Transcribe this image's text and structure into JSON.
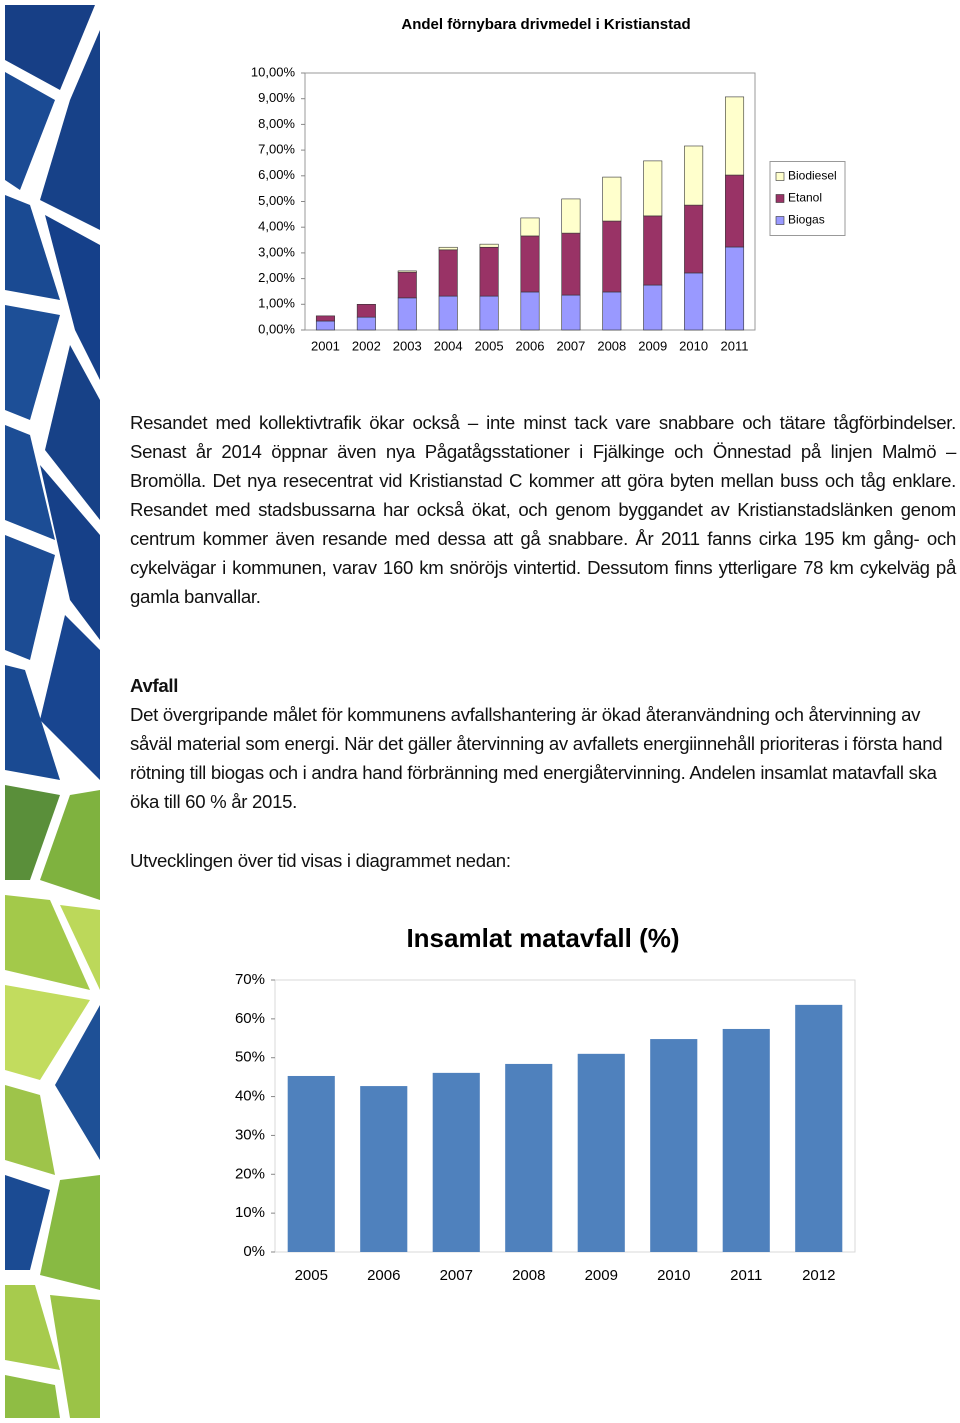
{
  "chart_data": [
    {
      "type": "stacked_bar",
      "title": "Andel förnybara drivmedel i Kristianstad",
      "categories": [
        "2001",
        "2002",
        "2003",
        "2004",
        "2005",
        "2006",
        "2007",
        "2008",
        "2009",
        "2010",
        "2011"
      ],
      "series": [
        {
          "name": "Biogas",
          "color": "#9999ff",
          "values": [
            0.35,
            0.5,
            1.25,
            1.32,
            1.32,
            1.48,
            1.36,
            1.48,
            1.75,
            2.22,
            3.23
          ]
        },
        {
          "name": "Etanol",
          "color": "#993366",
          "values": [
            0.2,
            0.5,
            1.0,
            1.8,
            1.9,
            2.18,
            2.41,
            2.76,
            2.69,
            2.64,
            2.8
          ]
        },
        {
          "name": "Biodiesel",
          "color": "#ffffcc",
          "values": [
            0,
            0,
            0.05,
            0.1,
            0.12,
            0.7,
            1.33,
            1.71,
            2.14,
            2.3,
            3.04
          ]
        }
      ],
      "ylim": [
        0,
        10
      ],
      "yticks": [
        {
          "value": 0,
          "label": "0,00%"
        },
        {
          "value": 1,
          "label": "1,00%"
        },
        {
          "value": 2,
          "label": "2,00%"
        },
        {
          "value": 3,
          "label": "3,00%"
        },
        {
          "value": 4,
          "label": "4,00%"
        },
        {
          "value": 5,
          "label": "5,00%"
        },
        {
          "value": 6,
          "label": "6,00%"
        },
        {
          "value": 7,
          "label": "7,00%"
        },
        {
          "value": 8,
          "label": "8,00%"
        },
        {
          "value": 9,
          "label": "9,00%"
        },
        {
          "value": 10,
          "label": "10,00%"
        }
      ],
      "grid": false,
      "legend": "right"
    },
    {
      "type": "bar",
      "title": "Insamlat matavfall (%)",
      "categories": [
        "2005",
        "2006",
        "2007",
        "2008",
        "2009",
        "2010",
        "2011",
        "2012"
      ],
      "values": [
        45.3,
        42.7,
        46.1,
        48.4,
        51,
        54.8,
        57.4,
        63.6
      ],
      "color": "#4f81bd",
      "ylim": [
        0,
        70
      ],
      "yticks": [
        {
          "value": 0,
          "label": "0%"
        },
        {
          "value": 10,
          "label": "10%"
        },
        {
          "value": 20,
          "label": "20%"
        },
        {
          "value": 30,
          "label": "30%"
        },
        {
          "value": 40,
          "label": "40%"
        },
        {
          "value": 50,
          "label": "50%"
        },
        {
          "value": 60,
          "label": "60%"
        },
        {
          "value": 70,
          "label": "70%"
        }
      ],
      "grid": false
    }
  ],
  "document": {
    "paragraph_1": "Resandet med kollektivtrafik ökar också – inte minst tack vare snabbare och tätare tågförbindelser. Senast år 2014 öppnar även nya Pågatågsstationer i Fjälkinge och Önnestad på linjen Malmö – Bromölla. Det nya resecentrat vid Kristianstad C kommer att göra byten mellan buss och tåg enklare. Resandet med stadsbussarna har också ökat, och genom byggandet av Kristianstadslänken genom centrum kommer även resande med dessa att gå snabbare. År 2011 fanns cirka 195 km gång- och cykelvägar i kommunen, varav 160 km snöröjs vintertid. Dessutom finns ytterligare 78 km cykelväg på gamla banvallar.",
    "heading": "Avfall",
    "paragraph_2": "Det övergripande målet för kommunens avfallshantering är ökad återanvändning och återvinning av såväl material som energi. När det gäller återvinning av avfallets energiinnehåll prioriteras i första hand rötning till biogas och i andra hand förbränning med energiåtervinning. Andelen insamlat matavfall ska öka till 60 % år 2015.",
    "paragraph_3": "Utvecklingen över tid visas i diagrammet nedan:"
  }
}
